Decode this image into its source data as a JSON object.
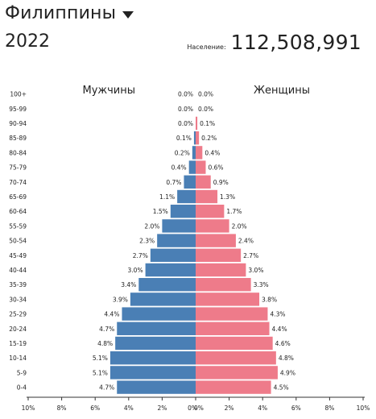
{
  "header": {
    "country": "Филиппины",
    "year": "2022",
    "population_label": "Население:",
    "population_value": "112,508,991",
    "caret_icon": "caret-down-icon"
  },
  "colors": {
    "male": "#4a7fb5",
    "female": "#ee7b8a"
  },
  "chart_data": {
    "type": "bar",
    "orientation": "horizontal-population-pyramid",
    "male_label": "Мужчины",
    "female_label": "Женщины",
    "categories": [
      "100+",
      "95-99",
      "90-94",
      "85-89",
      "80-84",
      "75-79",
      "70-74",
      "65-69",
      "60-64",
      "55-59",
      "50-54",
      "45-49",
      "40-44",
      "35-39",
      "30-34",
      "25-29",
      "20-24",
      "15-19",
      "10-14",
      "5-9",
      "0-4"
    ],
    "series": [
      {
        "name": "Мужчины",
        "values": [
          0.0,
          0.0,
          0.0,
          0.1,
          0.2,
          0.4,
          0.7,
          1.1,
          1.5,
          2.0,
          2.3,
          2.7,
          3.0,
          3.4,
          3.9,
          4.4,
          4.7,
          4.8,
          5.1,
          5.1,
          4.7
        ]
      },
      {
        "name": "Женщины",
        "values": [
          0.0,
          0.0,
          0.1,
          0.2,
          0.4,
          0.6,
          0.9,
          1.3,
          1.7,
          2.0,
          2.4,
          2.7,
          3.0,
          3.3,
          3.8,
          4.3,
          4.4,
          4.6,
          4.8,
          4.9,
          4.5
        ]
      }
    ],
    "value_labels_male": [
      "0.0%",
      "0.0%",
      "0.0%",
      "0.1%",
      "0.2%",
      "0.4%",
      "0.7%",
      "1.1%",
      "1.5%",
      "2.0%",
      "2.3%",
      "2.7%",
      "3.0%",
      "3.4%",
      "3.9%",
      "4.4%",
      "4.7%",
      "4.8%",
      "5.1%",
      "5.1%",
      "4.7%"
    ],
    "value_labels_female": [
      "0.0%",
      "0.0%",
      "0.1%",
      "0.2%",
      "0.4%",
      "0.6%",
      "0.9%",
      "1.3%",
      "1.7%",
      "2.0%",
      "2.4%",
      "2.7%",
      "3.0%",
      "3.3%",
      "3.8%",
      "4.3%",
      "4.4%",
      "4.6%",
      "4.8%",
      "4.9%",
      "4.5%"
    ],
    "x_ticks": [
      "10%",
      "8%",
      "6%",
      "4%",
      "2%",
      "0%",
      "0%",
      "2%",
      "4%",
      "6%",
      "8%",
      "10%"
    ],
    "xlim": [
      -10,
      10
    ],
    "grid": false
  }
}
